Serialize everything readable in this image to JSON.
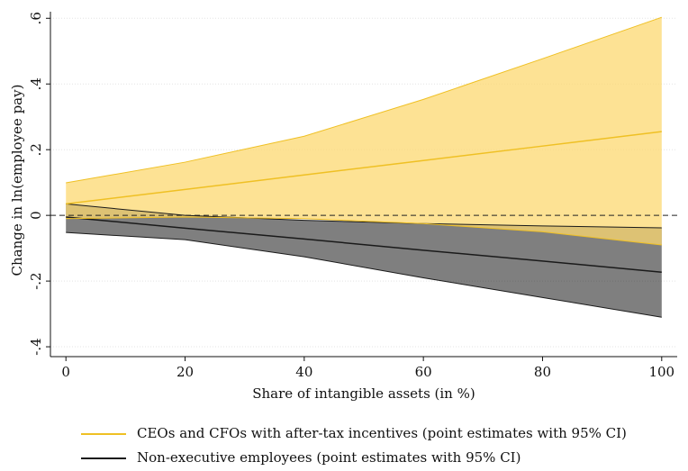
{
  "chart_data": {
    "type": "line",
    "xlabel": "Share of intangible assets (in %)",
    "ylabel": "Change in ln(employee pay)",
    "x": [
      0,
      20,
      40,
      60,
      80,
      100
    ],
    "series": [
      {
        "name": "Non-executive employees (point estimates with 95% CI)",
        "color": "#1a1a1a",
        "band_color": "#000000",
        "values": [
          -0.005,
          -0.039,
          -0.072,
          -0.106,
          -0.139,
          -0.173
        ],
        "lower": [
          -0.052,
          -0.074,
          -0.126,
          -0.19,
          -0.25,
          -0.31
        ],
        "upper": [
          0.035,
          0.0,
          -0.015,
          -0.025,
          -0.032,
          -0.038
        ]
      },
      {
        "name": "CEOs and CFOs with after-tax incentives (point estimates with 95% CI)",
        "color": "#efc024",
        "band_color": "#fcd870",
        "values": [
          0.035,
          0.079,
          0.123,
          0.167,
          0.211,
          0.255
        ],
        "lower": [
          -0.01,
          -0.005,
          -0.01,
          -0.025,
          -0.05,
          -0.09
        ],
        "upper": [
          0.099,
          0.162,
          0.241,
          0.353,
          0.477,
          0.603
        ]
      }
    ],
    "legend_order": [
      1,
      0
    ],
    "legend": "bottom",
    "xlim": [
      -2.6,
      102.6
    ],
    "ylim": [
      -0.43,
      0.62
    ],
    "xticks": [
      0,
      20,
      40,
      60,
      80,
      100
    ],
    "yticks": [
      {
        "value": -0.4,
        "label": "-.4"
      },
      {
        "value": -0.2,
        "label": "-.2"
      },
      0,
      {
        "value": 0.2,
        "label": ".2"
      },
      {
        "value": 0.4,
        "label": ".4"
      },
      {
        "value": 0.6,
        "label": ".6"
      }
    ],
    "grid": true,
    "hline": 0
  }
}
